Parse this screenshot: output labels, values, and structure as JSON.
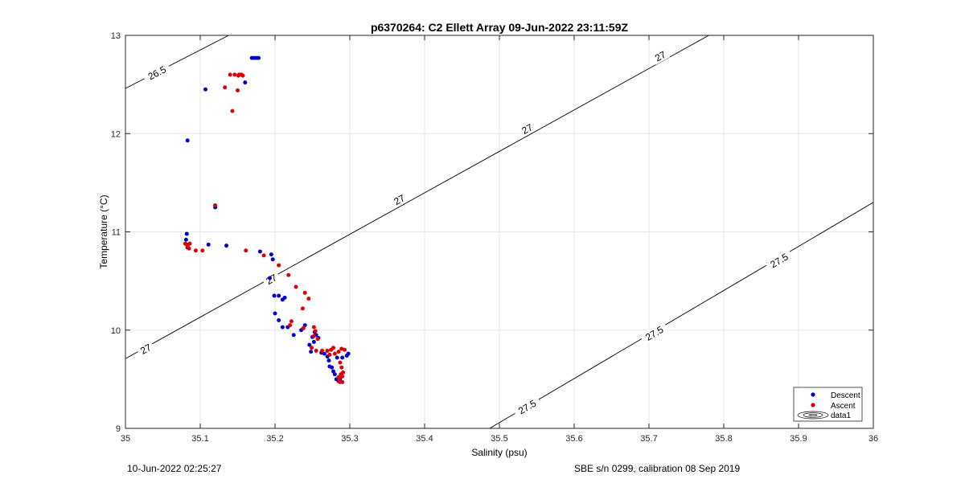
{
  "footer": {
    "timestamp": "10-Jun-2022 02:25:27",
    "calibration": "SBE s/n 0299, calibration 08 Sep 2019"
  },
  "chart_data": {
    "type": "scatter",
    "title": "p6370264: C2 Ellett Array 09-Jun-2022 23:11:59Z",
    "xlabel": "Salinity (psu)",
    "ylabel": "Temperature (°C)",
    "xlim": [
      35,
      36
    ],
    "ylim": [
      9,
      13
    ],
    "xticks": [
      "35",
      "35.1",
      "35.2",
      "35.3",
      "35.4",
      "35.5",
      "35.6",
      "35.7",
      "35.8",
      "35.9",
      "36"
    ],
    "yticks": [
      "9",
      "10",
      "11",
      "12",
      "13"
    ],
    "grid": true,
    "legend": {
      "position": "bottom-right",
      "entries": [
        "Descent",
        "Ascent",
        "data1"
      ]
    },
    "density_contours": [
      {
        "label": "26.5",
        "points": [
          [
            35.0,
            12.46
          ],
          [
            35.138,
            13.0
          ]
        ]
      },
      {
        "label": "27",
        "points": [
          [
            35.0,
            9.71
          ],
          [
            35.78,
            13.0
          ]
        ]
      },
      {
        "label": "27.5",
        "points": [
          [
            35.487,
            9.0
          ],
          [
            36.0,
            11.3
          ]
        ]
      }
    ],
    "contour_labels": [
      {
        "text": "26.5",
        "x": 35.042,
        "y": 12.62
      },
      {
        "text": "27",
        "x": 35.027,
        "y": 9.81
      },
      {
        "text": "27",
        "x": 35.195,
        "y": 10.52
      },
      {
        "text": "27",
        "x": 35.366,
        "y": 11.33
      },
      {
        "text": "27",
        "x": 35.537,
        "y": 12.05
      },
      {
        "text": "27",
        "x": 35.715,
        "y": 12.79
      },
      {
        "text": "27.5",
        "x": 35.537,
        "y": 9.22
      },
      {
        "text": "27.5",
        "x": 35.707,
        "y": 9.97
      },
      {
        "text": "27.5",
        "x": 35.874,
        "y": 10.71
      }
    ],
    "series": [
      {
        "name": "Descent",
        "color": "#0000cc",
        "points": [
          [
            35.083,
            11.93
          ],
          [
            35.082,
            10.98
          ],
          [
            35.081,
            10.92
          ],
          [
            35.082,
            10.87
          ],
          [
            35.083,
            10.84
          ],
          [
            35.111,
            10.87
          ],
          [
            35.135,
            10.86
          ],
          [
            35.107,
            12.45
          ],
          [
            35.12,
            11.25
          ],
          [
            35.169,
            12.77
          ],
          [
            35.175,
            12.77
          ],
          [
            35.178,
            12.77
          ],
          [
            35.172,
            12.77
          ],
          [
            35.16,
            12.52
          ],
          [
            35.18,
            10.8
          ],
          [
            35.195,
            10.77
          ],
          [
            35.197,
            10.72
          ],
          [
            35.193,
            10.53
          ],
          [
            35.199,
            10.35
          ],
          [
            35.205,
            10.35
          ],
          [
            35.21,
            10.31
          ],
          [
            35.213,
            10.33
          ],
          [
            35.2,
            10.17
          ],
          [
            35.205,
            10.1
          ],
          [
            35.21,
            10.03
          ],
          [
            35.217,
            10.03
          ],
          [
            35.225,
            9.95
          ],
          [
            35.235,
            10.0
          ],
          [
            35.24,
            10.05
          ],
          [
            35.246,
            9.85
          ],
          [
            35.248,
            9.78
          ],
          [
            35.252,
            9.88
          ],
          [
            35.25,
            9.93
          ],
          [
            35.253,
            9.98
          ],
          [
            35.255,
            9.95
          ],
          [
            35.258,
            9.92
          ],
          [
            35.262,
            9.77
          ],
          [
            35.266,
            9.76
          ],
          [
            35.27,
            9.73
          ],
          [
            35.272,
            9.69
          ],
          [
            35.273,
            9.63
          ],
          [
            35.276,
            9.62
          ],
          [
            35.278,
            9.58
          ],
          [
            35.28,
            9.55
          ],
          [
            35.282,
            9.5
          ],
          [
            35.285,
            9.48
          ],
          [
            35.287,
            9.5
          ],
          [
            35.283,
            9.72
          ],
          [
            35.29,
            9.72
          ],
          [
            35.296,
            9.74
          ],
          [
            35.298,
            9.76
          ]
        ]
      },
      {
        "name": "Ascent",
        "color": "#dd0000",
        "points": [
          [
            35.08,
            10.88
          ],
          [
            35.083,
            10.85
          ],
          [
            35.086,
            10.88
          ],
          [
            35.085,
            10.83
          ],
          [
            35.094,
            10.81
          ],
          [
            35.103,
            10.81
          ],
          [
            35.12,
            11.27
          ],
          [
            35.133,
            12.47
          ],
          [
            35.14,
            12.6
          ],
          [
            35.146,
            12.6
          ],
          [
            35.152,
            12.6
          ],
          [
            35.155,
            12.6
          ],
          [
            35.151,
            12.59
          ],
          [
            35.157,
            12.59
          ],
          [
            35.15,
            12.44
          ],
          [
            35.143,
            12.23
          ],
          [
            35.161,
            10.81
          ],
          [
            35.185,
            10.76
          ],
          [
            35.205,
            10.66
          ],
          [
            35.218,
            10.56
          ],
          [
            35.228,
            10.44
          ],
          [
            35.24,
            10.38
          ],
          [
            35.245,
            10.32
          ],
          [
            35.237,
            10.22
          ],
          [
            35.222,
            10.09
          ],
          [
            35.22,
            10.05
          ],
          [
            35.238,
            10.02
          ],
          [
            35.252,
            10.03
          ],
          [
            35.254,
            9.99
          ],
          [
            35.252,
            9.94
          ],
          [
            35.257,
            9.91
          ],
          [
            35.249,
            9.82
          ],
          [
            35.255,
            9.79
          ],
          [
            35.263,
            9.79
          ],
          [
            35.27,
            9.79
          ],
          [
            35.275,
            9.8
          ],
          [
            35.278,
            9.82
          ],
          [
            35.28,
            9.76
          ],
          [
            35.273,
            9.75
          ],
          [
            35.285,
            9.78
          ],
          [
            35.289,
            9.81
          ],
          [
            35.293,
            9.8
          ],
          [
            35.287,
            9.67
          ],
          [
            35.289,
            9.62
          ],
          [
            35.291,
            9.57
          ],
          [
            35.29,
            9.53
          ],
          [
            35.288,
            9.55
          ],
          [
            35.286,
            9.49
          ],
          [
            35.287,
            9.47
          ],
          [
            35.29,
            9.47
          ],
          [
            35.285,
            9.52
          ]
        ]
      }
    ]
  }
}
